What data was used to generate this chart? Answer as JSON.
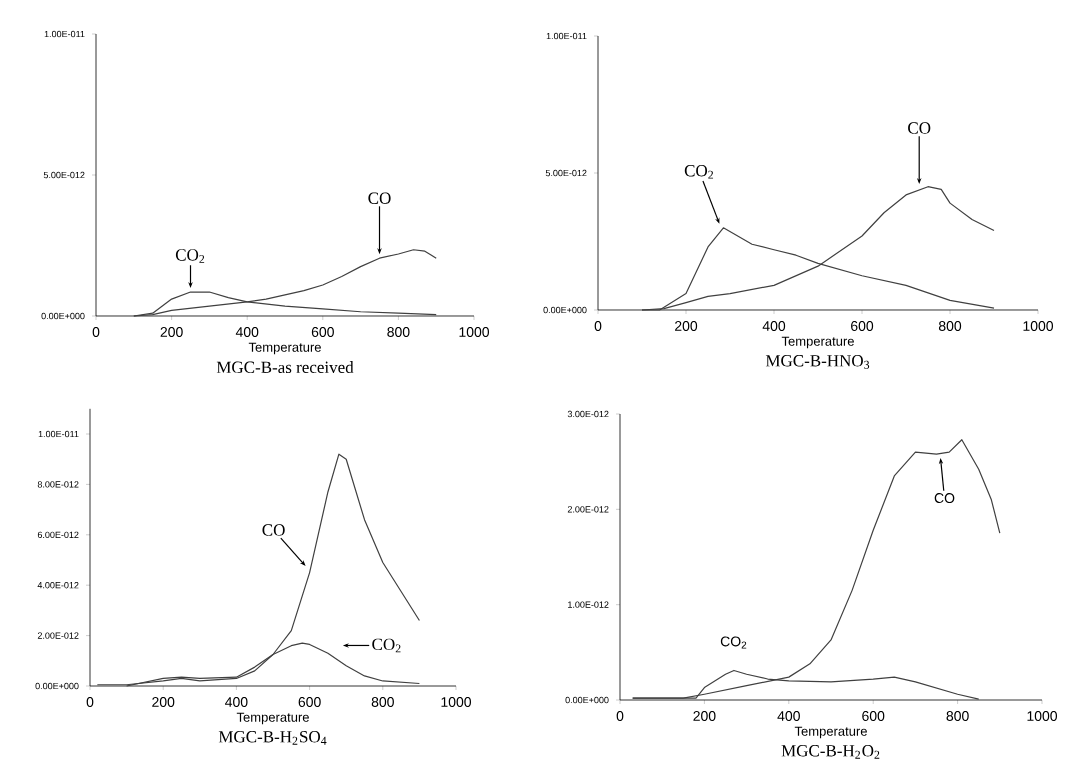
{
  "chart_data": [
    {
      "type": "line",
      "title": "MGC-B-as received",
      "xlabel": "Temperature",
      "xlim": [
        0,
        1000
      ],
      "xticks": [
        0,
        200,
        400,
        600,
        800,
        1000
      ],
      "ylim": [
        0,
        1e-11
      ],
      "yticks": [
        {
          "value": 0,
          "label": "0.00E+000"
        },
        {
          "value": 5e-12,
          "label": "5.00E-012"
        },
        {
          "value": 1e-11,
          "label": "1.00E-011"
        }
      ],
      "series": [
        {
          "color": "#404040",
          "x": [
            100,
            150,
            200,
            250,
            300,
            350,
            400,
            500,
            600,
            700,
            800,
            900
          ],
          "values": [
            0,
            1e-13,
            6e-13,
            8.5e-13,
            8.5e-13,
            6.5e-13,
            5e-13,
            3.5e-13,
            2.5e-13,
            1.5e-13,
            1e-13,
            5e-14
          ]
        },
        {
          "color": "#404040",
          "x": [
            100,
            150,
            200,
            300,
            400,
            450,
            500,
            550,
            600,
            650,
            700,
            750,
            800,
            840,
            870,
            900
          ],
          "values": [
            0,
            5e-14,
            2e-13,
            3.5e-13,
            5e-13,
            6e-13,
            7.5e-13,
            9e-13,
            1.1e-12,
            1.4e-12,
            1.75e-12,
            2.05e-12,
            2.2e-12,
            2.35e-12,
            2.3e-12,
            2.05e-12
          ]
        }
      ],
      "annotations": [
        {
          "text": "CO$_{2}$",
          "x": 250,
          "y": 8.5e-13
        },
        {
          "text": "CO",
          "x": 750,
          "y": 2.05e-12
        }
      ]
    },
    {
      "type": "line",
      "title": "MGC-B-HNO$_{3}$",
      "xlabel": "Temperature",
      "xlim": [
        0,
        1000
      ],
      "xticks": [
        0,
        200,
        400,
        600,
        800,
        1000
      ],
      "ylim": [
        0,
        1e-11
      ],
      "yticks": [
        {
          "value": 0,
          "label": "0.00E+000"
        },
        {
          "value": 5e-12,
          "label": "5.00E-012"
        },
        {
          "value": 1e-11,
          "label": "1.00E-011"
        }
      ],
      "series": [
        {
          "color": "#404040",
          "x": [
            100,
            140,
            200,
            250,
            285,
            350,
            400,
            450,
            500,
            600,
            700,
            800,
            900
          ],
          "values": [
            0,
            0,
            6e-13,
            2.3e-12,
            3e-12,
            2.4e-12,
            2.2e-12,
            2e-12,
            1.7e-12,
            1.25e-12,
            9e-13,
            3.5e-13,
            7e-14
          ]
        },
        {
          "color": "#404040",
          "x": [
            100,
            150,
            200,
            250,
            300,
            400,
            500,
            600,
            650,
            700,
            750,
            780,
            800,
            850,
            900
          ],
          "values": [
            0,
            5e-14,
            2.7e-13,
            5e-13,
            6e-13,
            9e-13,
            1.6e-12,
            2.7e-12,
            3.55e-12,
            4.2e-12,
            4.5e-12,
            4.4e-12,
            3.9e-12,
            3.3e-12,
            2.9e-12
          ]
        }
      ],
      "annotations": [
        {
          "text": "CO$_{2}$",
          "x": 285,
          "y": 3e-12
        },
        {
          "text": "CO",
          "x": 730,
          "y": 4.45e-12
        }
      ]
    },
    {
      "type": "line",
      "title": "MGC-B-H$_{2}$SO$_{4}$",
      "xlabel": "Temperature",
      "xlim": [
        0,
        1000
      ],
      "xticks": [
        0,
        200,
        400,
        600,
        800,
        1000
      ],
      "ylim": [
        0,
        1.1e-11
      ],
      "yticks": [
        {
          "value": 0,
          "label": "0.00E+000"
        },
        {
          "value": 2e-12,
          "label": "2.00E-012"
        },
        {
          "value": 4e-12,
          "label": "4.00E-012"
        },
        {
          "value": 6e-12,
          "label": "6.00E-012"
        },
        {
          "value": 8e-12,
          "label": "8.00E-012"
        },
        {
          "value": 1e-11,
          "label": "1.00E-011"
        }
      ],
      "series": [
        {
          "color": "#404040",
          "x": [
            20,
            100,
            200,
            250,
            300,
            400,
            450,
            500,
            550,
            600,
            650,
            680,
            700,
            750,
            800,
            850,
            900
          ],
          "values": [
            5e-14,
            5e-14,
            2e-13,
            3e-13,
            2e-13,
            3e-13,
            6e-13,
            1.25e-12,
            2.2e-12,
            4.5e-12,
            7.7e-12,
            9.2e-12,
            9e-12,
            6.6e-12,
            4.9e-12,
            3.75e-12,
            2.6e-12
          ]
        },
        {
          "color": "#404040",
          "x": [
            100,
            200,
            250,
            300,
            400,
            450,
            500,
            550,
            580,
            600,
            650,
            700,
            750,
            800,
            900
          ],
          "values": [
            0,
            3e-13,
            3.5e-13,
            3e-13,
            3.5e-13,
            7.5e-13,
            1.25e-12,
            1.6e-12,
            1.7e-12,
            1.65e-12,
            1.3e-12,
            8e-13,
            4e-13,
            2e-13,
            1e-13
          ]
        }
      ],
      "annotations": [
        {
          "text": "CO",
          "x": 600,
          "y": 4.6e-12
        },
        {
          "text": "CO$_{2}$",
          "x": 680,
          "y": 1.45e-12
        }
      ]
    },
    {
      "type": "line",
      "title": "MGC-B-H$_{2}$O$_{2}$",
      "xlabel": "Temperature",
      "xlim": [
        0,
        1000
      ],
      "xticks": [
        0,
        200,
        400,
        600,
        800,
        1000
      ],
      "ylim": [
        0,
        3e-12
      ],
      "yticks": [
        {
          "value": 0,
          "label": "0.00E+000"
        },
        {
          "value": 1e-12,
          "label": "1.00E-012"
        },
        {
          "value": 2e-12,
          "label": "2.00E-012"
        },
        {
          "value": 3e-12,
          "label": "3.00E-012"
        }
      ],
      "series": [
        {
          "color": "#404040",
          "x": [
            30,
            100,
            150,
            200,
            300,
            400,
            450,
            500,
            550,
            600,
            650,
            700,
            750,
            780,
            810,
            850,
            880,
            900
          ],
          "values": [
            2e-14,
            2e-14,
            2e-14,
            6e-14,
            1.5e-13,
            2.4e-13,
            3.8e-13,
            6.3e-13,
            1.15e-12,
            1.78e-12,
            2.35e-12,
            2.6e-12,
            2.58e-12,
            2.6e-12,
            2.73e-12,
            2.42e-12,
            2.1e-12,
            1.75e-12
          ]
        },
        {
          "color": "#404040",
          "x": [
            30,
            100,
            180,
            200,
            250,
            270,
            300,
            350,
            400,
            500,
            600,
            650,
            700,
            800,
            850
          ],
          "values": [
            2e-14,
            2e-14,
            2e-14,
            1.3e-13,
            2.7e-13,
            3.1e-13,
            2.7e-13,
            2.2e-13,
            2e-13,
            1.9e-13,
            2.2e-13,
            2.4e-13,
            1.9e-13,
            6e-14,
            1e-14
          ]
        }
      ],
      "annotations": [
        {
          "text": "CO$_{2}$",
          "x": 270,
          "y": 3.1e-13
        },
        {
          "text": "CO",
          "x": 750,
          "y": 2.58e-12
        }
      ]
    }
  ]
}
